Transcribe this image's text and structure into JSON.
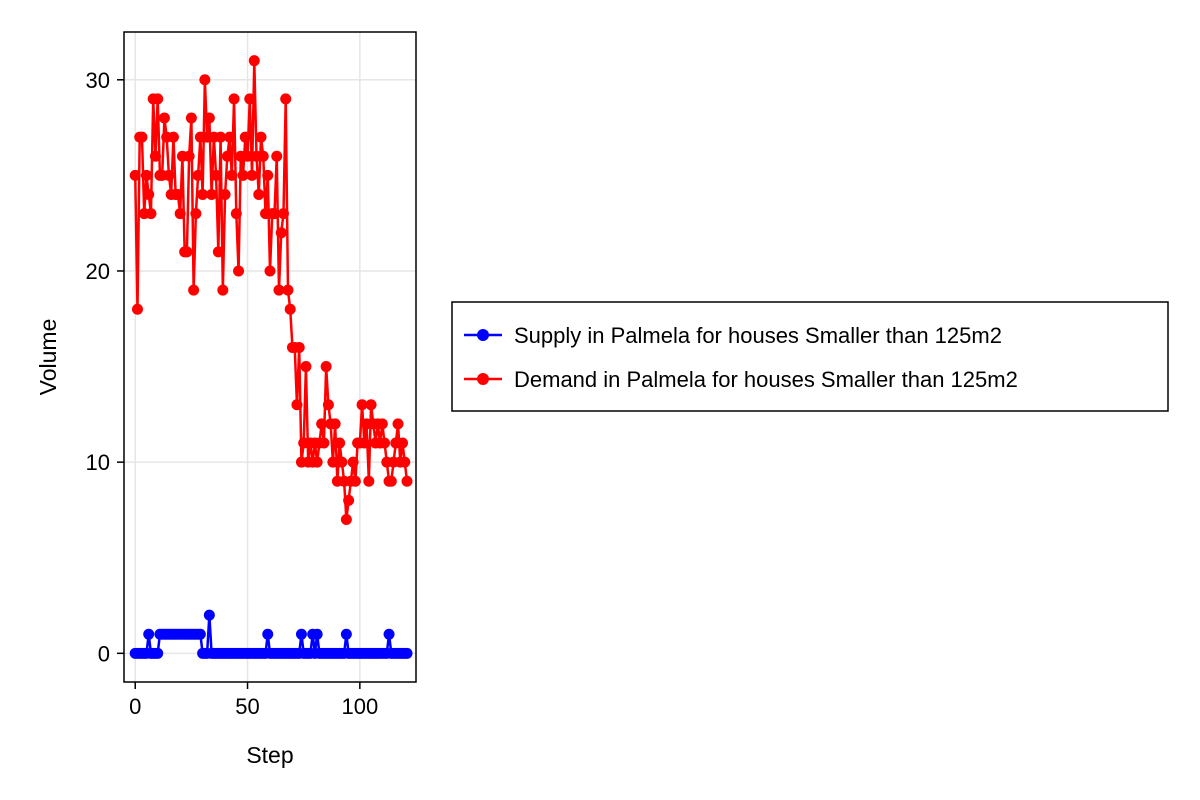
{
  "chart_data": {
    "type": "line",
    "title": "",
    "xlabel": "Step",
    "ylabel": "Volume",
    "xlim": [
      -5,
      125
    ],
    "ylim": [
      -1.5,
      32.5
    ],
    "xticks": [
      0,
      50,
      100
    ],
    "yticks": [
      0,
      10,
      20,
      30
    ],
    "grid": true,
    "legend_position": "right-center",
    "series": [
      {
        "name": "Supply in Palmela for houses Smaller than 125m2",
        "color": "#0000ff",
        "marker": "circle",
        "x": [
          0,
          1,
          2,
          3,
          4,
          5,
          6,
          7,
          8,
          9,
          10,
          11,
          12,
          13,
          14,
          15,
          16,
          17,
          18,
          19,
          20,
          21,
          22,
          23,
          24,
          25,
          26,
          27,
          28,
          29,
          30,
          31,
          32,
          33,
          34,
          35,
          36,
          37,
          38,
          39,
          40,
          41,
          42,
          43,
          44,
          45,
          46,
          47,
          48,
          49,
          50,
          51,
          52,
          53,
          54,
          55,
          56,
          57,
          58,
          59,
          60,
          61,
          62,
          63,
          64,
          65,
          66,
          67,
          68,
          69,
          70,
          71,
          72,
          73,
          74,
          75,
          76,
          77,
          78,
          79,
          80,
          81,
          82,
          83,
          84,
          85,
          86,
          87,
          88,
          89,
          90,
          91,
          92,
          93,
          94,
          95,
          96,
          97,
          98,
          99,
          100,
          101,
          102,
          103,
          104,
          105,
          106,
          107,
          108,
          109,
          110,
          111,
          112,
          113,
          114,
          115,
          116,
          117,
          118,
          119,
          120,
          121
        ],
        "y": [
          0,
          0,
          0,
          0,
          0,
          0,
          1,
          0,
          0,
          0,
          0,
          1,
          1,
          1,
          1,
          1,
          1,
          1,
          1,
          1,
          1,
          1,
          1,
          1,
          1,
          1,
          1,
          1,
          1,
          1,
          0,
          0,
          0,
          2,
          0,
          0,
          0,
          0,
          0,
          0,
          0,
          0,
          0,
          0,
          0,
          0,
          0,
          0,
          0,
          0,
          0,
          0,
          0,
          0,
          0,
          0,
          0,
          0,
          0,
          1,
          0,
          0,
          0,
          0,
          0,
          0,
          0,
          0,
          0,
          0,
          0,
          0,
          0,
          0,
          1,
          0,
          0,
          0,
          0,
          1,
          0,
          1,
          0,
          0,
          0,
          0,
          0,
          0,
          0,
          0,
          0,
          0,
          0,
          0,
          1,
          0,
          0,
          0,
          0,
          0,
          0,
          0,
          0,
          0,
          0,
          0,
          0,
          0,
          0,
          0,
          0,
          0,
          0,
          1,
          0,
          0,
          0,
          0,
          0,
          0,
          0,
          0
        ]
      },
      {
        "name": "Demand in Palmela for houses Smaller than 125m2",
        "color": "#ff0000",
        "marker": "circle",
        "x": [
          0,
          1,
          2,
          3,
          4,
          5,
          6,
          7,
          8,
          9,
          10,
          11,
          12,
          13,
          14,
          15,
          16,
          17,
          18,
          19,
          20,
          21,
          22,
          23,
          24,
          25,
          26,
          27,
          28,
          29,
          30,
          31,
          32,
          33,
          34,
          35,
          36,
          37,
          38,
          39,
          40,
          41,
          42,
          43,
          44,
          45,
          46,
          47,
          48,
          49,
          50,
          51,
          52,
          53,
          54,
          55,
          56,
          57,
          58,
          59,
          60,
          61,
          62,
          63,
          64,
          65,
          66,
          67,
          68,
          69,
          70,
          71,
          72,
          73,
          74,
          75,
          76,
          77,
          78,
          79,
          80,
          81,
          82,
          83,
          84,
          85,
          86,
          87,
          88,
          89,
          90,
          91,
          92,
          93,
          94,
          95,
          96,
          97,
          98,
          99,
          100,
          101,
          102,
          103,
          104,
          105,
          106,
          107,
          108,
          109,
          110,
          111,
          112,
          113,
          114,
          115,
          116,
          117,
          118,
          119,
          120,
          121
        ],
        "y": [
          25,
          18,
          27,
          27,
          23,
          25,
          24,
          23,
          29,
          26,
          29,
          25,
          25,
          28,
          27,
          25,
          24,
          27,
          24,
          24,
          23,
          26,
          21,
          21,
          26,
          28,
          19,
          23,
          25,
          27,
          24,
          30,
          27,
          28,
          24,
          27,
          25,
          21,
          27,
          19,
          24,
          26,
          27,
          25,
          29,
          23,
          20,
          26,
          25,
          27,
          26,
          29,
          25,
          31,
          26,
          24,
          27,
          26,
          23,
          25,
          20,
          23,
          23,
          26,
          19,
          22,
          23,
          29,
          19,
          18,
          16,
          16,
          13,
          16,
          10,
          11,
          15,
          10,
          11,
          10,
          11,
          10,
          11,
          12,
          11,
          15,
          13,
          12,
          10,
          12,
          9,
          11,
          10,
          9,
          7,
          8,
          9,
          10,
          9,
          11,
          11,
          13,
          11,
          12,
          9,
          13,
          12,
          11,
          12,
          11,
          12,
          11,
          10,
          9,
          9,
          10,
          11,
          12,
          10,
          11,
          10,
          9
        ]
      }
    ]
  }
}
